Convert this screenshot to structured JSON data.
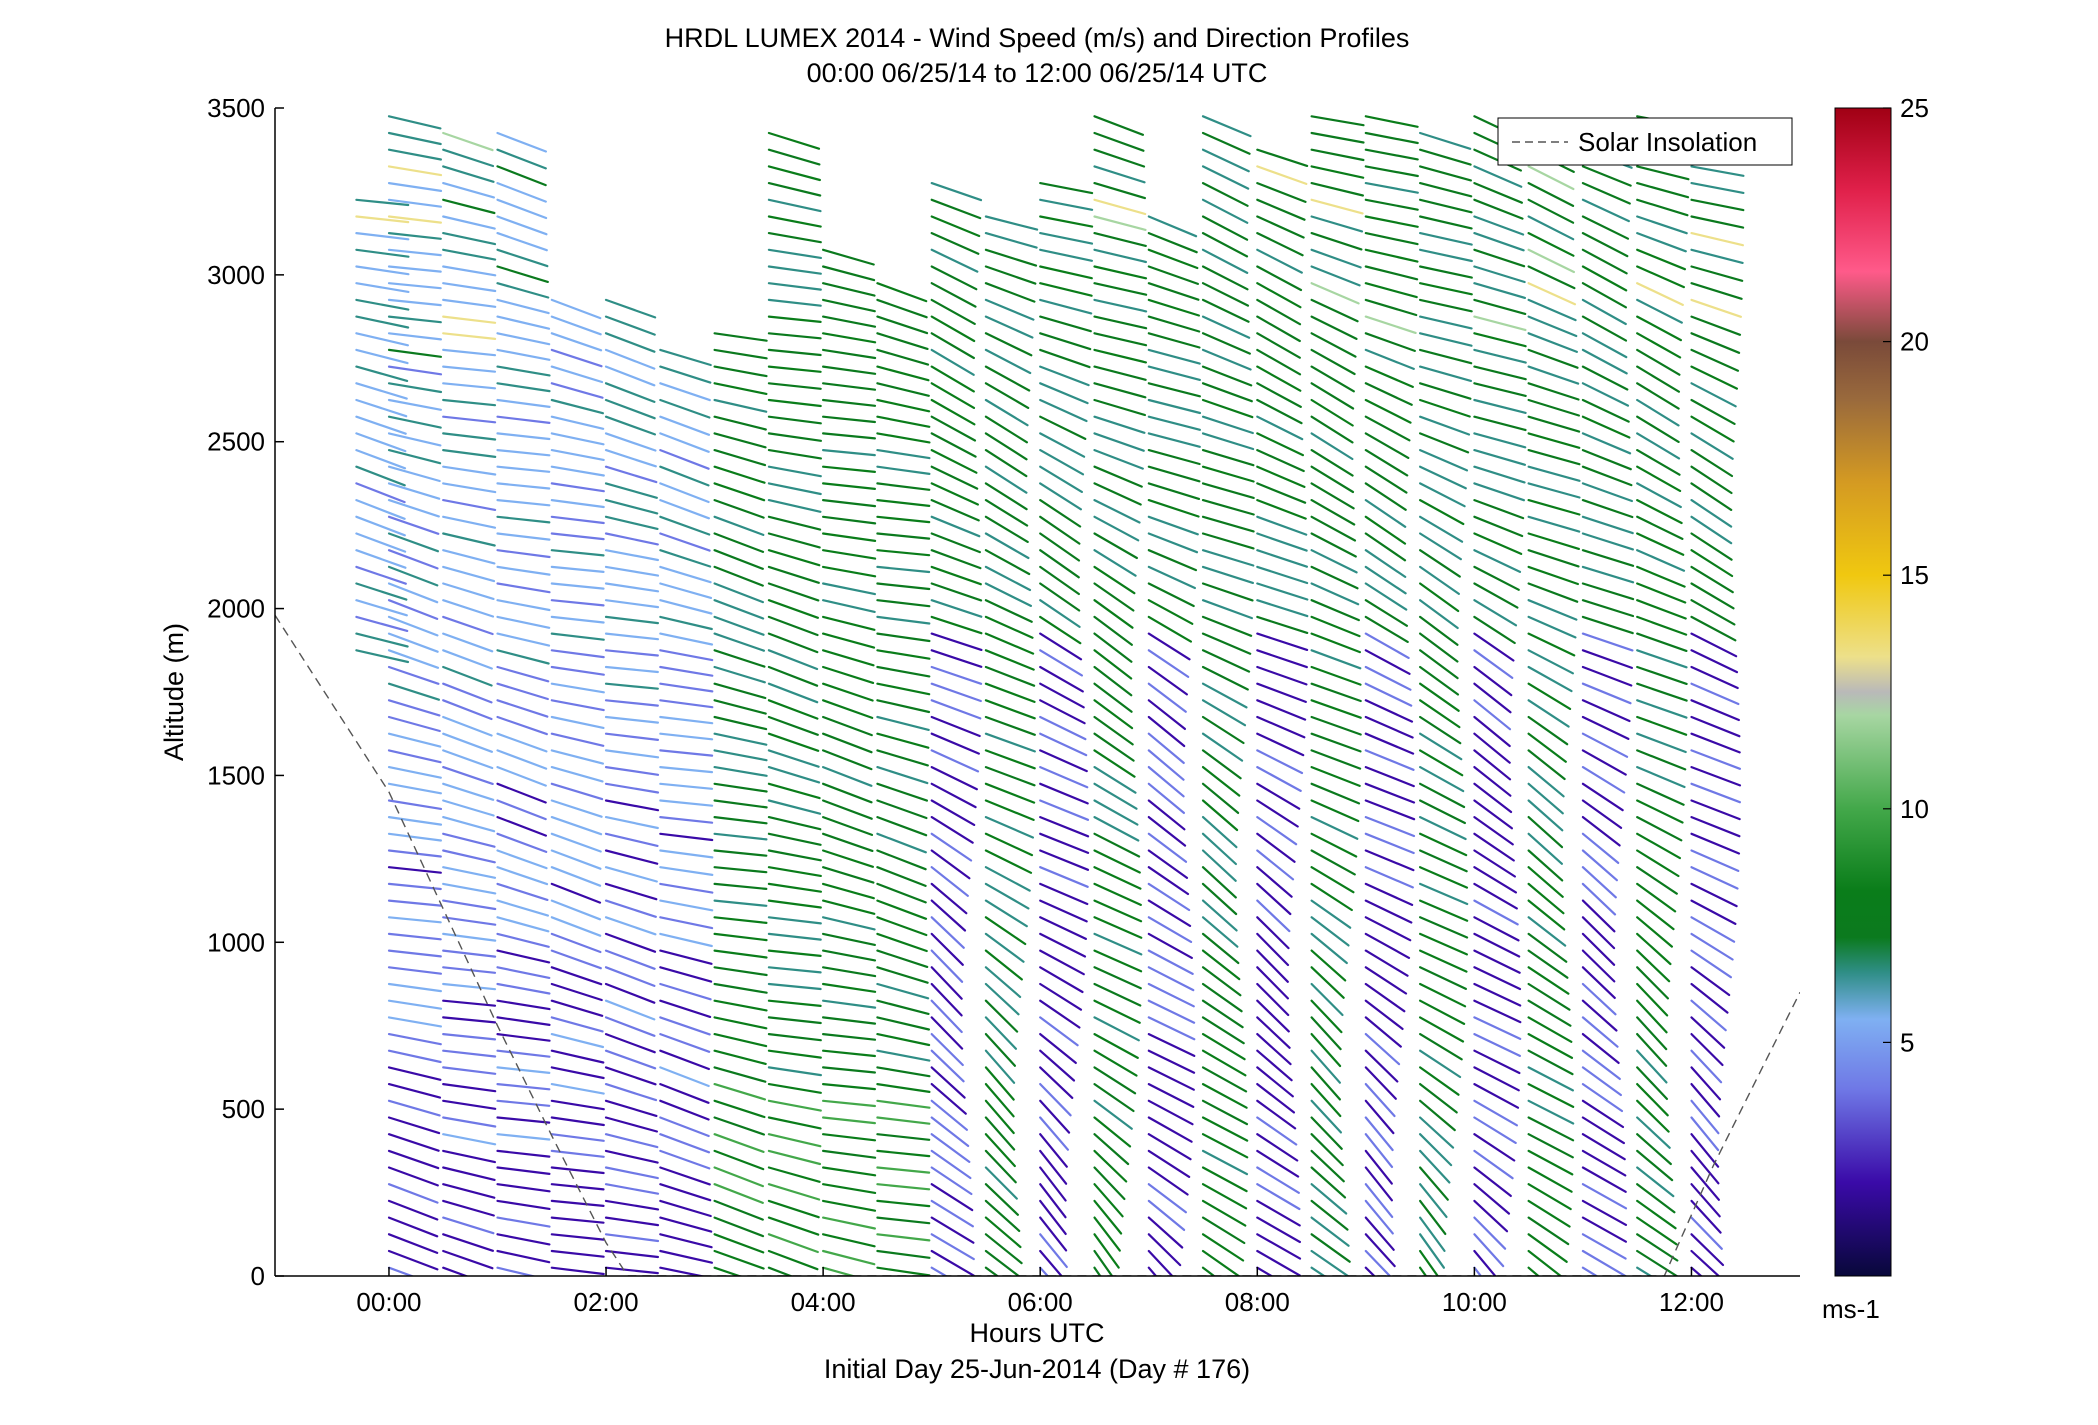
{
  "chart_data": {
    "type": "wind-barb-profile",
    "title_line1": "HRDL LUMEX 2014 - Wind Speed (m/s) and Direction Profiles",
    "title_line2": "00:00 06/25/14 to 12:00 06/25/14  UTC",
    "xlabel": "Hours UTC",
    "xlabel2": "Initial Day 25-Jun-2014 (Day # 176)",
    "ylabel": "Altitude (m)",
    "xlim": [
      -1.05,
      13.0
    ],
    "ylim": [
      0,
      3500
    ],
    "x_ticks": [
      {
        "value": 0,
        "label": "00:00"
      },
      {
        "value": 2,
        "label": "02:00"
      },
      {
        "value": 4,
        "label": "04:00"
      },
      {
        "value": 6,
        "label": "06:00"
      },
      {
        "value": 8,
        "label": "08:00"
      },
      {
        "value": 10,
        "label": "10:00"
      },
      {
        "value": 12,
        "label": "12:00"
      }
    ],
    "y_ticks": [
      0,
      500,
      1000,
      1500,
      2000,
      2500,
      3000,
      3500
    ],
    "legend": {
      "label": "Solar Insolation",
      "position": "top-right",
      "style": "dashed"
    },
    "colorbar": {
      "min": 0,
      "max": 25,
      "ticks": [
        5,
        10,
        15,
        20,
        25
      ],
      "unit": "ms-1"
    },
    "solar_insolation": [
      {
        "x": -1.05,
        "y": 1980
      },
      {
        "x": 0.0,
        "y": 1450
      },
      {
        "x": 0.5,
        "y": 1100
      },
      {
        "x": 1.0,
        "y": 750
      },
      {
        "x": 1.5,
        "y": 420
      },
      {
        "x": 2.0,
        "y": 100
      },
      {
        "x": 2.2,
        "y": 0
      },
      {
        "x": 11.75,
        "y": 0
      },
      {
        "x": 12.2,
        "y": 330
      },
      {
        "x": 13.0,
        "y": 850
      }
    ],
    "profiles": [
      {
        "time": -0.3,
        "ztop": 3250,
        "zbot": 1850
      },
      {
        "time": 0.0,
        "ztop": 3480,
        "zbot": 0
      },
      {
        "time": 0.5,
        "ztop": 3430,
        "zbot": 0
      },
      {
        "time": 1.0,
        "ztop": 3460,
        "zbot": 0
      },
      {
        "time": 1.5,
        "ztop": 2930,
        "zbot": 0
      },
      {
        "time": 2.0,
        "ztop": 2930,
        "zbot": 0
      },
      {
        "time": 2.5,
        "ztop": 2800,
        "zbot": 0
      },
      {
        "time": 3.0,
        "ztop": 2870,
        "zbot": 0
      },
      {
        "time": 3.5,
        "ztop": 3470,
        "zbot": 0
      },
      {
        "time": 4.0,
        "ztop": 3080,
        "zbot": 0
      },
      {
        "time": 4.5,
        "ztop": 2980,
        "zbot": 0
      },
      {
        "time": 5.0,
        "ztop": 3310,
        "zbot": 0
      },
      {
        "time": 5.5,
        "ztop": 3200,
        "zbot": 0
      },
      {
        "time": 6.0,
        "ztop": 3300,
        "zbot": 0
      },
      {
        "time": 6.5,
        "ztop": 3500,
        "zbot": 0
      },
      {
        "time": 7.0,
        "ztop": 3180,
        "zbot": 0
      },
      {
        "time": 7.5,
        "ztop": 3490,
        "zbot": 0
      },
      {
        "time": 8.0,
        "ztop": 3410,
        "zbot": 0
      },
      {
        "time": 8.5,
        "ztop": 3480,
        "zbot": 0
      },
      {
        "time": 9.0,
        "ztop": 3480,
        "zbot": 0
      },
      {
        "time": 9.5,
        "ztop": 3470,
        "zbot": 0
      },
      {
        "time": 10.0,
        "ztop": 3480,
        "zbot": 0
      },
      {
        "time": 10.5,
        "ztop": 3450,
        "zbot": 0
      },
      {
        "time": 11.0,
        "ztop": 3450,
        "zbot": 0
      },
      {
        "time": 11.5,
        "ztop": 3480,
        "zbot": 0
      },
      {
        "time": 12.0,
        "ztop": 3330,
        "zbot": 0
      }
    ],
    "profile_spacing_m": 50
  }
}
